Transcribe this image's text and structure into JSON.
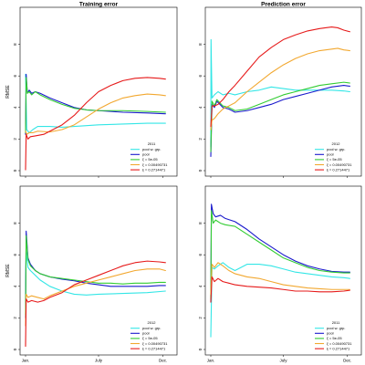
{
  "chart_data": [
    {
      "type": "line",
      "title": "Training error",
      "xlabel": "",
      "ylabel": "RMSE",
      "xlim": [
        0,
        12
      ],
      "ylim": [
        0,
        10
      ],
      "y_ticks": [
        0,
        2,
        4,
        6,
        8
      ],
      "x_ticks": [
        {
          "value": 0,
          "label": ""
        },
        {
          "value": 6,
          "label": ""
        },
        {
          "value": 11.3,
          "label": ""
        }
      ],
      "grid": false,
      "legend": {
        "placement": "bottom-right",
        "year": "2011"
      },
      "series": [
        {
          "name": "pool w. grp.",
          "color": "#33e6e6",
          "x": [
            0,
            0.1,
            0.3,
            0.6,
            1,
            2,
            3,
            4,
            6,
            8,
            10,
            11.5
          ],
          "y": [
            6.1,
            2.6,
            2.4,
            2.6,
            2.8,
            2.8,
            2.75,
            2.8,
            2.9,
            2.95,
            3.0,
            3.0
          ]
        },
        {
          "name": "pool",
          "color": "#1a1acc",
          "x": [
            0,
            0.05,
            0.15,
            0.3,
            0.5,
            0.8,
            1.2,
            2,
            3,
            4,
            5,
            6,
            7,
            8,
            10,
            11.5
          ],
          "y": [
            2.3,
            6.1,
            4.9,
            5.1,
            4.9,
            5.0,
            4.9,
            4.6,
            4.3,
            4.0,
            3.85,
            3.8,
            3.75,
            3.7,
            3.65,
            3.6
          ]
        },
        {
          "name": "ξ = 5e-05",
          "color": "#33cc33",
          "x": [
            0,
            0.05,
            0.15,
            0.3,
            0.5,
            0.8,
            1.2,
            2,
            3,
            4,
            5,
            6,
            7,
            8,
            10,
            11.5
          ],
          "y": [
            2.4,
            5.9,
            4.9,
            5.0,
            4.8,
            5.0,
            4.8,
            4.5,
            4.2,
            3.95,
            3.85,
            3.8,
            3.8,
            3.8,
            3.75,
            3.7
          ]
        },
        {
          "name": "ξ = 0.00490731",
          "color": "#f2a830",
          "x": [
            0,
            0.1,
            0.3,
            0.6,
            1,
            2,
            3,
            4,
            5,
            6,
            7,
            8,
            9,
            10,
            11,
            11.5
          ],
          "y": [
            2.5,
            2.3,
            2.4,
            2.4,
            2.5,
            2.45,
            2.6,
            2.9,
            3.4,
            3.9,
            4.3,
            4.6,
            4.75,
            4.85,
            4.8,
            4.75
          ]
        },
        {
          "name": "ξ = 0.2714471",
          "color": "#e61a1a",
          "x": [
            0,
            0.05,
            0.2,
            0.4,
            0.8,
            1.5,
            2,
            3,
            4,
            5,
            6,
            7,
            8,
            9,
            10,
            11,
            11.5
          ],
          "y": [
            0.05,
            2.3,
            2.0,
            2.15,
            2.2,
            2.3,
            2.5,
            2.9,
            3.5,
            4.3,
            5.0,
            5.4,
            5.7,
            5.85,
            5.9,
            5.85,
            5.8
          ]
        }
      ]
    },
    {
      "type": "line",
      "title": "Prediction error",
      "xlabel": "",
      "ylabel": "",
      "xlim": [
        0,
        12
      ],
      "ylim": [
        0,
        10
      ],
      "y_ticks": [
        0,
        2,
        4,
        6,
        8
      ],
      "x_ticks": [
        {
          "value": 0,
          "label": ""
        },
        {
          "value": 6,
          "label": ""
        },
        {
          "value": 11.3,
          "label": ""
        }
      ],
      "grid": false,
      "legend": {
        "placement": "bottom-right",
        "year": "2012"
      },
      "series": [
        {
          "name": "pool w. grp.",
          "color": "#33e6e6",
          "x": [
            0,
            0.02,
            0.1,
            0.3,
            0.6,
            1,
            1.5,
            2,
            3,
            4,
            5,
            6,
            7,
            8,
            9,
            10,
            11,
            11.5
          ],
          "y": [
            1.5,
            8.3,
            4.6,
            4.8,
            5.0,
            4.8,
            4.9,
            4.8,
            5.0,
            5.1,
            5.3,
            5.2,
            5.1,
            5.1,
            5.1,
            5.1,
            5.05,
            5.0
          ]
        },
        {
          "name": "pool",
          "color": "#1a1acc",
          "x": [
            0,
            0.1,
            0.3,
            0.5,
            1,
            1.5,
            2,
            3,
            4,
            5,
            6,
            7,
            8,
            9,
            10,
            11,
            11.5
          ],
          "y": [
            0.9,
            4.2,
            4.0,
            4.4,
            4.0,
            3.9,
            3.7,
            3.8,
            4.0,
            4.2,
            4.5,
            4.7,
            4.9,
            5.1,
            5.3,
            5.4,
            5.35
          ]
        },
        {
          "name": "ξ = 5e-05",
          "color": "#33cc33",
          "x": [
            0,
            0.1,
            0.3,
            0.5,
            1,
            1.5,
            2,
            3,
            4,
            5,
            6,
            7,
            8,
            9,
            10,
            11,
            11.5
          ],
          "y": [
            1.2,
            4.4,
            4.1,
            4.5,
            4.1,
            4.0,
            3.8,
            3.9,
            4.2,
            4.5,
            4.8,
            5.0,
            5.2,
            5.4,
            5.5,
            5.6,
            5.55
          ]
        },
        {
          "name": "ξ = 0.00490731",
          "color": "#f2a830",
          "x": [
            0,
            0.1,
            0.3,
            0.6,
            1,
            1.5,
            2,
            3,
            4,
            5,
            6,
            7,
            8,
            9,
            10,
            10.5,
            11,
            11.5
          ],
          "y": [
            2.6,
            3.2,
            3.3,
            3.6,
            3.9,
            4.1,
            4.3,
            5.0,
            5.6,
            6.2,
            6.7,
            7.1,
            7.4,
            7.6,
            7.7,
            7.75,
            7.65,
            7.6
          ]
        },
        {
          "name": "ξ = 0.2714471",
          "color": "#e61a1a",
          "x": [
            0,
            0.1,
            0.3,
            0.6,
            1,
            1.5,
            2,
            3,
            4,
            5,
            6,
            7,
            8,
            9,
            10,
            10.5,
            11,
            11.5
          ],
          "y": [
            2.8,
            4.1,
            4.1,
            4.2,
            4.5,
            5.0,
            5.4,
            6.3,
            7.2,
            7.8,
            8.3,
            8.6,
            8.85,
            9.0,
            9.1,
            9.05,
            8.9,
            8.8
          ]
        }
      ]
    },
    {
      "type": "line",
      "title": "",
      "xlabel": "",
      "ylabel": "RMSE",
      "xlim": [
        0,
        12
      ],
      "ylim": [
        0,
        10
      ],
      "y_ticks": [
        0,
        2,
        4,
        6,
        8
      ],
      "x_ticks": [
        {
          "value": 0,
          "label": "Jan."
        },
        {
          "value": 6,
          "label": "July"
        },
        {
          "value": 11.3,
          "label": "Dec."
        }
      ],
      "grid": false,
      "legend": {
        "placement": "bottom-right",
        "year": "2012"
      },
      "series": [
        {
          "name": "pool w. grp.",
          "color": "#33e6e6",
          "x": [
            0,
            0.05,
            0.2,
            0.4,
            0.8,
            1.2,
            2,
            3,
            4,
            5,
            6,
            8,
            10,
            11.5
          ],
          "y": [
            3.5,
            6.2,
            5.2,
            5.0,
            4.7,
            4.4,
            4.0,
            3.7,
            3.5,
            3.45,
            3.5,
            3.55,
            3.6,
            3.7
          ]
        },
        {
          "name": "pool",
          "color": "#1a1acc",
          "x": [
            0,
            0.05,
            0.2,
            0.4,
            0.8,
            1.2,
            2,
            3,
            4,
            5,
            6,
            7,
            8,
            9,
            10,
            11,
            11.5
          ],
          "y": [
            2.0,
            7.5,
            5.8,
            5.4,
            5.0,
            4.8,
            4.6,
            4.45,
            4.35,
            4.2,
            4.1,
            4.0,
            4.0,
            4.0,
            4.0,
            4.05,
            4.05
          ]
        },
        {
          "name": "ξ = 5e-05",
          "color": "#33cc33",
          "x": [
            0,
            0.05,
            0.2,
            0.4,
            0.8,
            1.2,
            2,
            3,
            4,
            5,
            6,
            7,
            8,
            9,
            10,
            11,
            11.5
          ],
          "y": [
            2.2,
            7.2,
            5.7,
            5.3,
            5.0,
            4.8,
            4.6,
            4.5,
            4.4,
            4.3,
            4.2,
            4.2,
            4.15,
            4.2,
            4.2,
            4.25,
            4.25
          ]
        },
        {
          "name": "ξ = 0.00490731",
          "color": "#f2a830",
          "x": [
            0,
            0.05,
            0.2,
            0.5,
            1,
            1.5,
            2,
            3,
            4,
            5,
            6,
            7,
            8,
            9,
            10,
            11,
            11.5
          ],
          "y": [
            1.5,
            3.5,
            3.3,
            3.4,
            3.3,
            3.2,
            3.4,
            3.7,
            4.0,
            4.2,
            4.4,
            4.6,
            4.8,
            5.0,
            5.1,
            5.1,
            5.0
          ]
        },
        {
          "name": "ξ = 0.2714471",
          "color": "#e61a1a",
          "x": [
            0,
            0.05,
            0.2,
            0.5,
            1,
            1.5,
            2,
            3,
            4,
            5,
            6,
            7,
            8,
            9,
            10,
            11,
            11.5
          ],
          "y": [
            0.2,
            3.2,
            3.0,
            3.1,
            3.0,
            3.1,
            3.3,
            3.6,
            4.1,
            4.4,
            4.7,
            5.0,
            5.3,
            5.5,
            5.6,
            5.55,
            5.5
          ]
        }
      ]
    },
    {
      "type": "line",
      "title": "",
      "xlabel": "",
      "ylabel": "",
      "xlim": [
        0,
        12
      ],
      "ylim": [
        0,
        10
      ],
      "y_ticks": [
        0,
        2,
        4,
        6,
        8
      ],
      "x_ticks": [
        {
          "value": 0,
          "label": "Jan."
        },
        {
          "value": 6,
          "label": "July"
        },
        {
          "value": 11.3,
          "label": "Dec."
        }
      ],
      "grid": false,
      "legend": {
        "placement": "bottom-right",
        "year": "2011"
      },
      "series": [
        {
          "name": "pool w. grp.",
          "color": "#33e6e6",
          "x": [
            0,
            0.1,
            0.3,
            0.6,
            1,
            1.5,
            2,
            3,
            4,
            5,
            6,
            7,
            8,
            9,
            10,
            11,
            11.5
          ],
          "y": [
            0.8,
            5.2,
            5.1,
            5.3,
            5.5,
            5.2,
            5.0,
            5.4,
            5.4,
            5.3,
            5.1,
            4.9,
            4.8,
            4.7,
            4.6,
            4.55,
            4.5
          ]
        },
        {
          "name": "pool",
          "color": "#1a1acc",
          "x": [
            0,
            0.05,
            0.2,
            0.4,
            0.8,
            1.2,
            2,
            3,
            4,
            5,
            6,
            7,
            8,
            9,
            10,
            11,
            11.5
          ],
          "y": [
            3.0,
            9.2,
            8.6,
            8.4,
            8.5,
            8.3,
            8.1,
            7.6,
            7.0,
            6.5,
            6.0,
            5.6,
            5.3,
            5.1,
            4.95,
            4.9,
            4.9
          ]
        },
        {
          "name": "ξ = 5e-05",
          "color": "#33cc33",
          "x": [
            0,
            0.05,
            0.2,
            0.4,
            0.8,
            1.2,
            2,
            3,
            4,
            5,
            6,
            7,
            8,
            9,
            10,
            11,
            11.5
          ],
          "y": [
            3.2,
            8.8,
            8.0,
            8.2,
            8.0,
            7.9,
            7.8,
            7.3,
            6.8,
            6.3,
            5.8,
            5.5,
            5.2,
            5.0,
            4.9,
            4.85,
            4.85
          ]
        },
        {
          "name": "ξ = 0.00490731",
          "color": "#f2a830",
          "x": [
            0,
            0.1,
            0.3,
            0.6,
            1,
            1.5,
            2,
            3,
            4,
            5,
            6,
            7,
            8,
            9,
            10,
            11,
            11.5
          ],
          "y": [
            3.5,
            5.4,
            5.2,
            5.5,
            5.3,
            5.0,
            4.8,
            4.6,
            4.5,
            4.3,
            4.1,
            4.0,
            3.9,
            3.85,
            3.8,
            3.8,
            3.8
          ]
        },
        {
          "name": "ξ = 0.2714471",
          "color": "#e61a1a",
          "x": [
            0,
            0.1,
            0.3,
            0.6,
            1,
            1.5,
            2,
            3,
            4,
            5,
            6,
            7,
            8,
            9,
            10,
            11,
            11.5
          ],
          "y": [
            3.0,
            4.6,
            4.3,
            4.5,
            4.3,
            4.2,
            4.1,
            4.0,
            3.95,
            3.9,
            3.8,
            3.7,
            3.7,
            3.65,
            3.65,
            3.7,
            3.75
          ]
        }
      ]
    }
  ]
}
